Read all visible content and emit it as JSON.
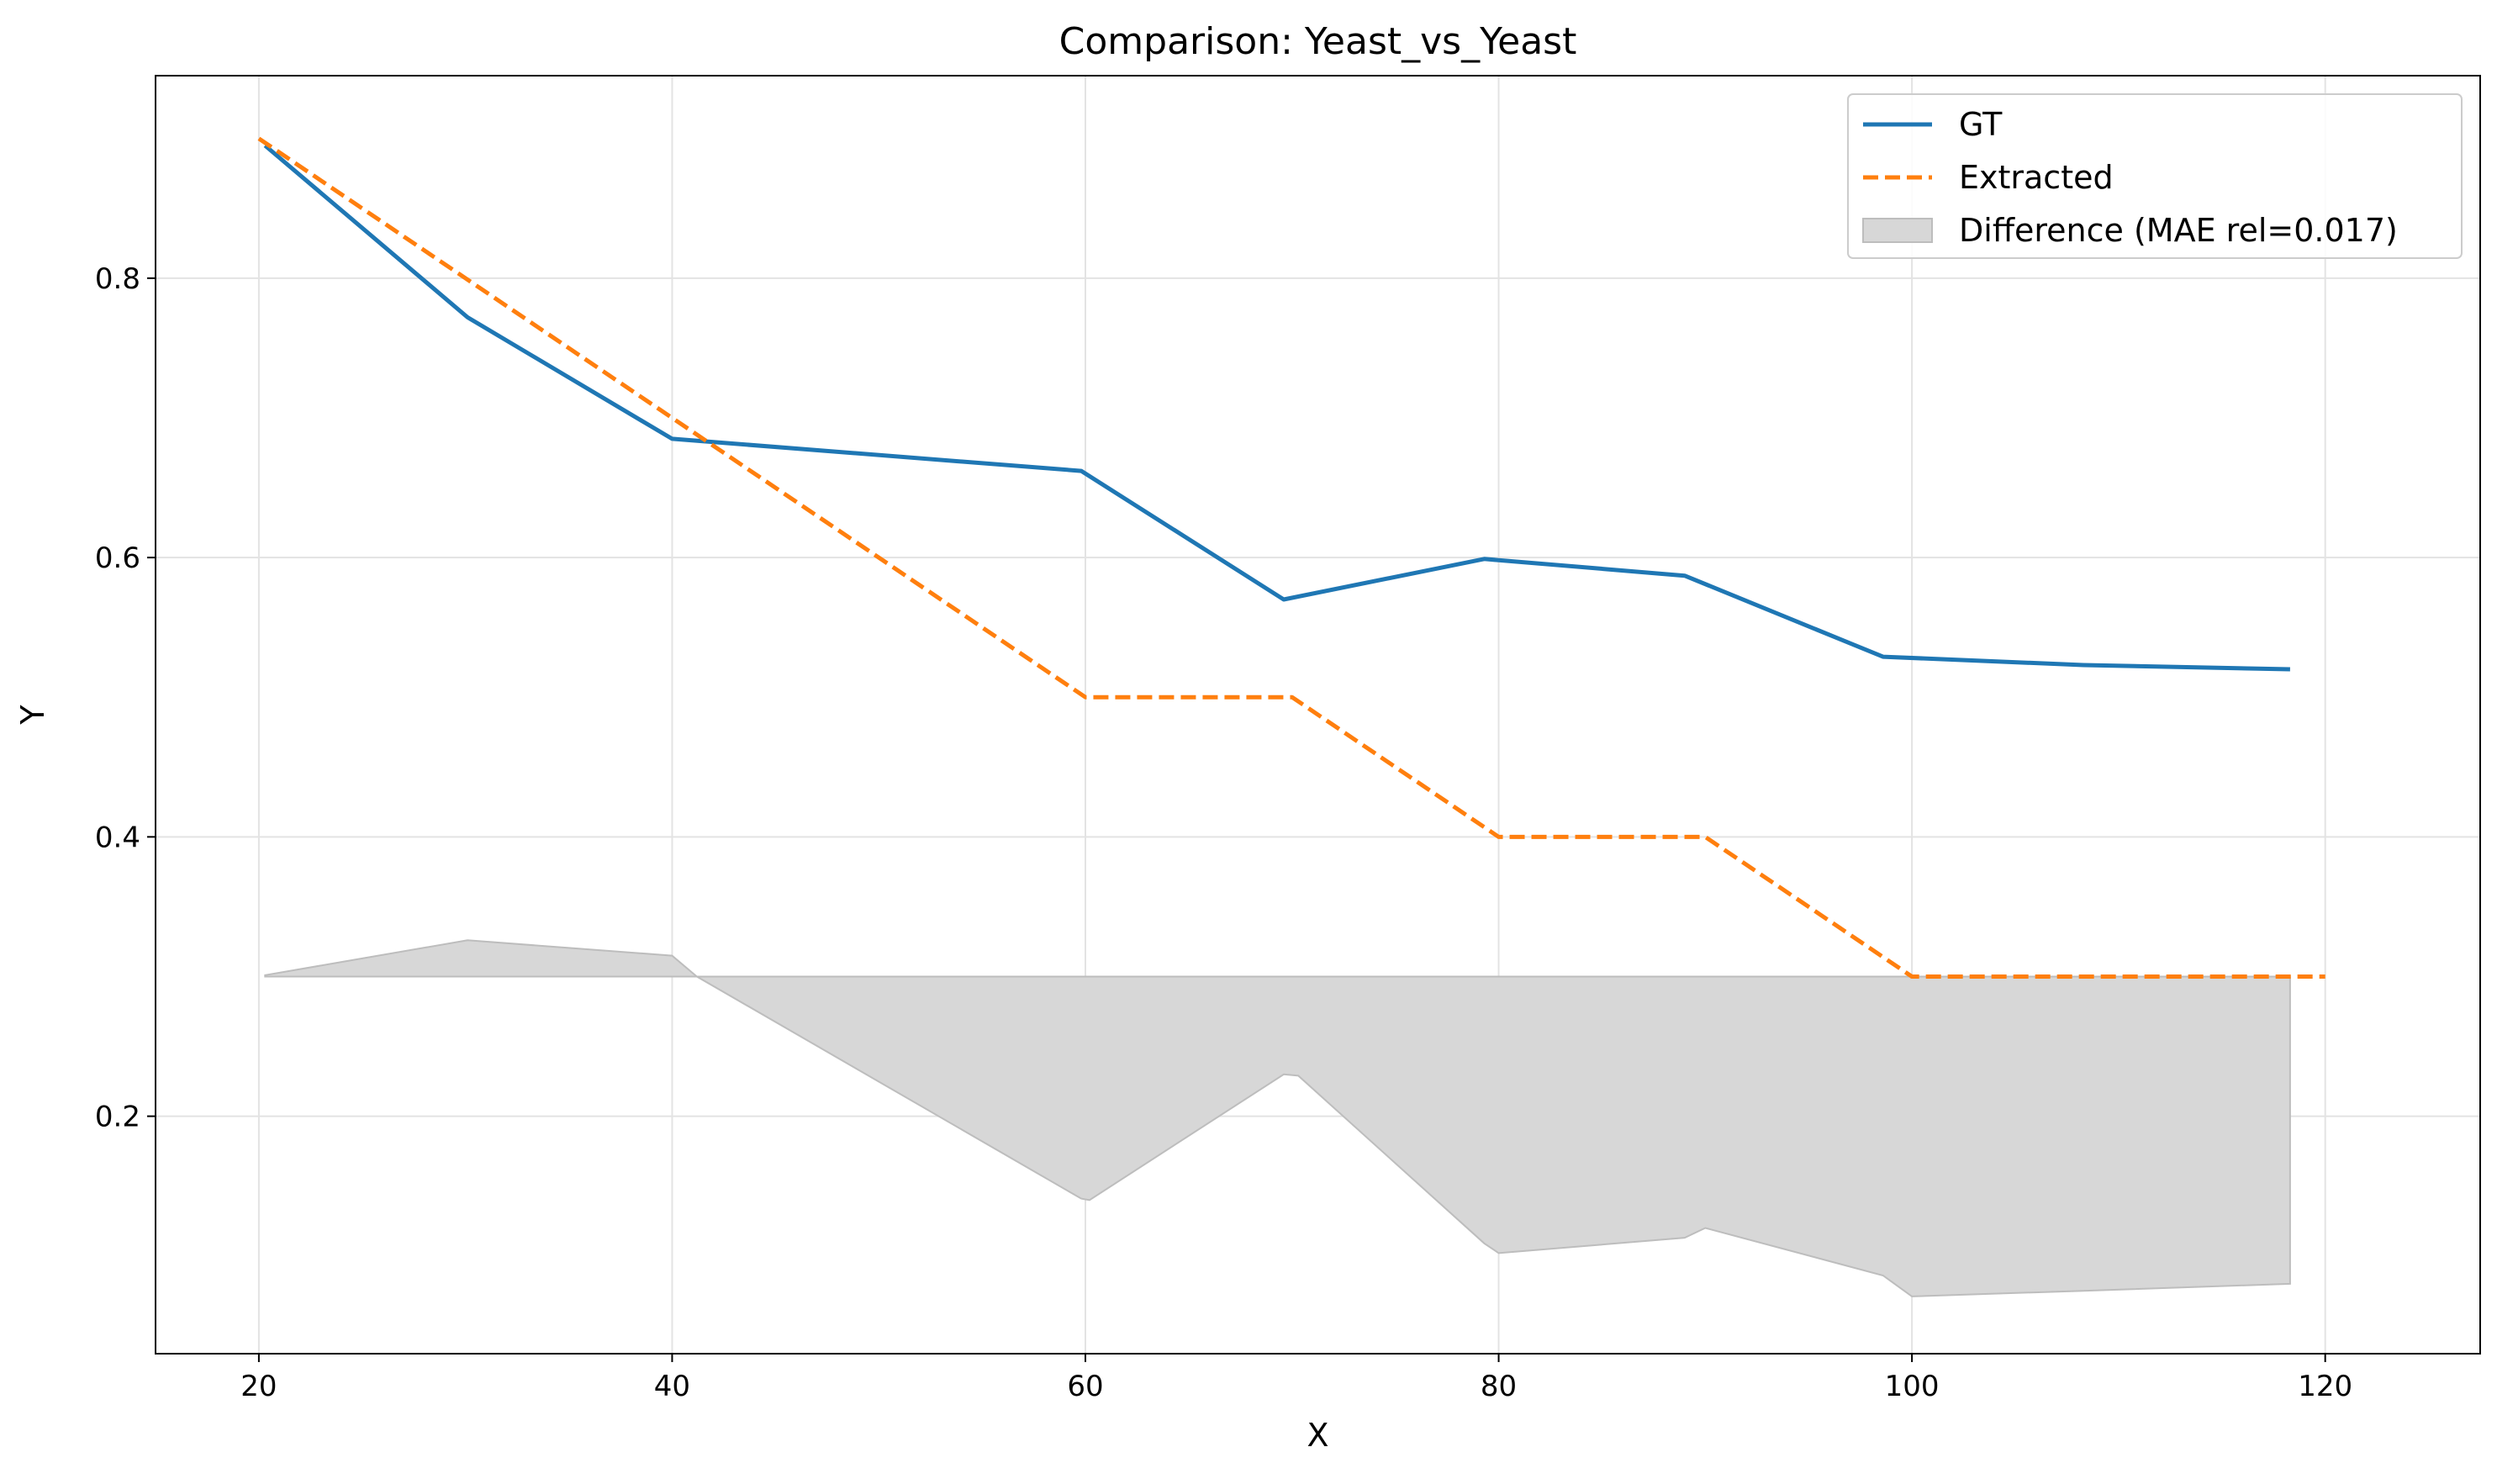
{
  "chart_data": {
    "type": "line",
    "title": "Comparison: Yeast_vs_Yeast",
    "xlabel": "X",
    "ylabel": "Y",
    "xlim": [
      15,
      127.5
    ],
    "ylim": [
      0.03,
      0.945
    ],
    "xticks": [
      20,
      40,
      60,
      80,
      100,
      120
    ],
    "yticks": [
      0.2,
      0.4,
      0.6,
      0.8
    ],
    "xtick_labels": [
      "20",
      "40",
      "60",
      "80",
      "100",
      "120"
    ],
    "ytick_labels": [
      "0.2",
      "0.4",
      "0.6",
      "0.8"
    ],
    "grid": true,
    "legend_position": "top-right",
    "series": [
      {
        "name": "GT",
        "color": "#1f77b4",
        "style": "solid",
        "x": [
          20.3,
          30.1,
          40,
          59.8,
          69.6,
          79.3,
          89,
          98.6,
          108.3,
          118.3
        ],
        "y": [
          0.895,
          0.772,
          0.685,
          0.662,
          0.57,
          0.599,
          0.587,
          0.529,
          0.523,
          0.52
        ]
      },
      {
        "name": "Extracted",
        "color": "#ff7f0e",
        "style": "dashed",
        "x": [
          20,
          40,
          60,
          70,
          80,
          90,
          100,
          110,
          120
        ],
        "y": [
          0.9,
          0.7,
          0.5,
          0.5,
          0.4,
          0.4,
          0.3,
          0.3,
          0.3
        ]
      }
    ],
    "difference_band": {
      "name": "Difference (MAE rel=0.017)",
      "color": "#d7d7d7",
      "edge_color": "#bdbdbd",
      "baseline": 0.3,
      "x": [
        20.3,
        30.1,
        40,
        41.2,
        59.8,
        60.2,
        69.6,
        70.3,
        79.3,
        80.0,
        89.0,
        90.0,
        98.6,
        100.0,
        108.3,
        118.3
      ],
      "y": [
        0.301,
        0.326,
        0.315,
        0.3,
        0.141,
        0.14,
        0.23,
        0.229,
        0.109,
        0.102,
        0.113,
        0.12,
        0.086,
        0.071,
        0.075,
        0.08
      ]
    }
  }
}
